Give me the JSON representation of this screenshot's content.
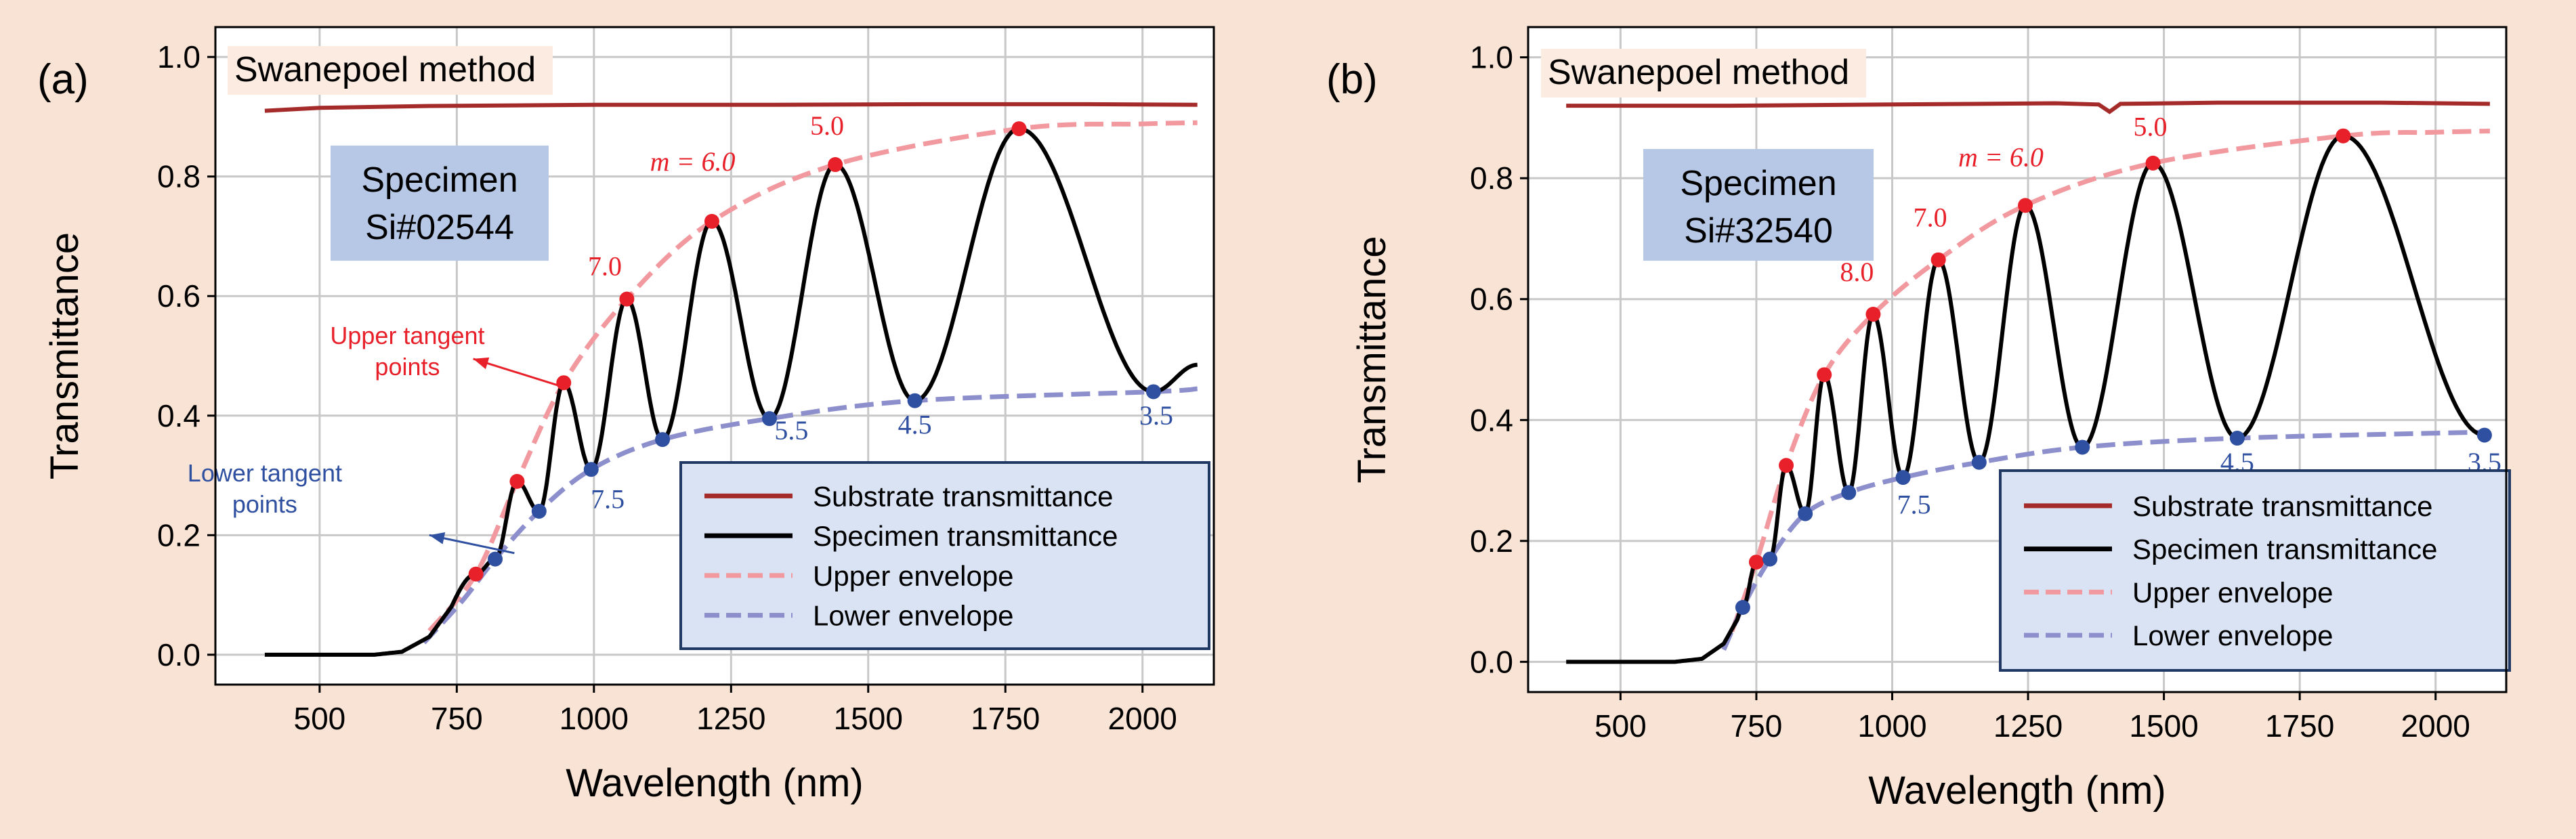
{
  "figure": {
    "panel_labels": [
      "(a)",
      "(b)"
    ],
    "colors": {
      "page_background": "#f8e3d4",
      "plot_background": "#ffffff",
      "grid": "#c8c8c8",
      "substrate": "#a52a2a",
      "specimen": "#000000",
      "upper_envelope": "#f2999f",
      "lower_envelope": "#8c8fcc",
      "upper_points": "#e8202a",
      "lower_points": "#2f4fa0",
      "upper_text": "#e8202a",
      "lower_text": "#2f4fa0",
      "specimen_box": "#b6c8e6",
      "legend_fill": "#dae3f3",
      "legend_border": "#1f3864"
    }
  },
  "chart_data": [
    {
      "type": "line",
      "panel": "(a)",
      "title": "",
      "xlabel": "Wavelength (nm)",
      "ylabel": "Transmittance",
      "xlim": [
        310,
        2130
      ],
      "ylim": [
        -0.05,
        1.05
      ],
      "xticks": [
        500,
        750,
        1000,
        1250,
        1500,
        1750,
        2000
      ],
      "yticks": [
        0.0,
        0.2,
        0.4,
        0.6,
        0.8,
        1.0
      ],
      "xtick_labels": [
        "500",
        "750",
        "1000",
        "1250",
        "1500",
        "1750",
        "2000"
      ],
      "ytick_labels": [
        "0.0",
        "0.2",
        "0.4",
        "0.6",
        "0.8",
        "1.0"
      ],
      "grid": true,
      "method_label": "Swanepoel method",
      "specimen_label": [
        "Specimen",
        "Si#02544"
      ],
      "legend": {
        "position": "lower-right",
        "entries": [
          "Substrate transmittance",
          "Specimen transmittance",
          "Upper envelope",
          "Lower envelope"
        ]
      },
      "substrate": {
        "x": [
          400,
          500,
          700,
          1000,
          1300,
          1600,
          1900,
          2100
        ],
        "y": [
          0.91,
          0.915,
          0.918,
          0.92,
          0.92,
          0.921,
          0.921,
          0.92
        ]
      },
      "specimen": {
        "onset_x": [
          400,
          600,
          650,
          700,
          740
        ],
        "onset_y": [
          0.0,
          0.0,
          0.005,
          0.03,
          0.08
        ],
        "max_x": [
          785,
          860,
          945,
          1060,
          1215,
          1440,
          1775
        ],
        "max_y": [
          0.135,
          0.29,
          0.455,
          0.595,
          0.725,
          0.82,
          0.88
        ],
        "min_x": [
          820,
          900,
          995,
          1125,
          1320,
          1585,
          2020
        ],
        "min_y": [
          0.16,
          0.24,
          0.31,
          0.36,
          0.395,
          0.425,
          0.44
        ],
        "end": [
          2100,
          0.485
        ]
      },
      "upper_envelope": {
        "x": [
          700,
          785,
          860,
          945,
          1060,
          1215,
          1440,
          1775,
          2000,
          2100
        ],
        "y": [
          0.04,
          0.135,
          0.29,
          0.455,
          0.595,
          0.725,
          0.82,
          0.88,
          0.888,
          0.89
        ]
      },
      "lower_envelope": {
        "x": [
          690,
          760,
          820,
          900,
          995,
          1125,
          1320,
          1585,
          2020,
          2100
        ],
        "y": [
          0.02,
          0.09,
          0.16,
          0.24,
          0.31,
          0.36,
          0.395,
          0.425,
          0.44,
          0.445
        ]
      },
      "upper_points": {
        "x": [
          785,
          860,
          945,
          1060,
          1215,
          1440,
          1775
        ],
        "y": [
          0.135,
          0.29,
          0.455,
          0.595,
          0.725,
          0.82,
          0.88
        ]
      },
      "lower_points": {
        "x": [
          820,
          900,
          995,
          1125,
          1320,
          1585,
          2020
        ],
        "y": [
          0.16,
          0.24,
          0.31,
          0.36,
          0.395,
          0.425,
          0.44
        ]
      },
      "order_labels": [
        {
          "text": "m = 6.0",
          "x": 1180,
          "y": 0.81,
          "color": "upper"
        },
        {
          "text": "7.0",
          "x": 1020,
          "y": 0.635,
          "color": "upper"
        },
        {
          "text": "5.0",
          "x": 1425,
          "y": 0.87,
          "color": "upper"
        },
        {
          "text": "7.5",
          "x": 1025,
          "y": 0.245,
          "color": "lower"
        },
        {
          "text": "5.5",
          "x": 1360,
          "y": 0.36,
          "color": "lower"
        },
        {
          "text": "4.5",
          "x": 1585,
          "y": 0.37,
          "color": "lower"
        },
        {
          "text": "3.5",
          "x": 2025,
          "y": 0.385,
          "color": "lower"
        }
      ],
      "annotations": [
        {
          "lines": [
            "Upper tangent",
            "points"
          ],
          "x": 660,
          "y": 0.52,
          "color": "upper",
          "arrow_to": [
            780,
            0.495
          ],
          "arrow_from": [
            937,
            0.45
          ]
        },
        {
          "lines": [
            "Lower tangent",
            "points"
          ],
          "x": 400,
          "y": 0.29,
          "color": "lower",
          "arrow_to": [
            700,
            0.2
          ],
          "arrow_from": [
            855,
            0.17
          ]
        }
      ]
    },
    {
      "type": "line",
      "panel": "(b)",
      "title": "",
      "xlabel": "Wavelength (nm)",
      "ylabel": "Transmittance",
      "xlim": [
        330,
        2130
      ],
      "ylim": [
        -0.05,
        1.05
      ],
      "xticks": [
        500,
        750,
        1000,
        1250,
        1500,
        1750,
        2000
      ],
      "yticks": [
        0.0,
        0.2,
        0.4,
        0.6,
        0.8,
        1.0
      ],
      "xtick_labels": [
        "500",
        "750",
        "1000",
        "1250",
        "1500",
        "1750",
        "2000"
      ],
      "ytick_labels": [
        "0.0",
        "0.2",
        "0.4",
        "0.6",
        "0.8",
        "1.0"
      ],
      "grid": true,
      "method_label": "Swanepoel method",
      "specimen_label": [
        "Specimen",
        "Si#32540"
      ],
      "legend": {
        "position": "lower-right",
        "entries": [
          "Substrate transmittance",
          "Specimen transmittance",
          "Upper envelope",
          "Lower envelope"
        ]
      },
      "substrate": {
        "x": [
          400,
          700,
          1000,
          1300,
          1380,
          1400,
          1420,
          1600,
          1900,
          2100
        ],
        "y": [
          0.92,
          0.92,
          0.922,
          0.924,
          0.922,
          0.91,
          0.923,
          0.925,
          0.925,
          0.923
        ]
      },
      "specimen": {
        "onset_x": [
          400,
          600,
          650,
          690,
          715
        ],
        "onset_y": [
          0.0,
          0.0,
          0.005,
          0.03,
          0.07
        ],
        "max_x": [
          750,
          805,
          875,
          965,
          1085,
          1245,
          1480,
          1830
        ],
        "max_y": [
          0.165,
          0.325,
          0.475,
          0.575,
          0.665,
          0.755,
          0.825,
          0.87
        ],
        "min_x": [
          725,
          775,
          840,
          920,
          1020,
          1160,
          1350,
          1635,
          2090
        ],
        "min_y": [
          0.09,
          0.17,
          0.245,
          0.28,
          0.305,
          0.33,
          0.355,
          0.37,
          0.375
        ],
        "end": [
          2090,
          0.375
        ]
      },
      "upper_envelope": {
        "x": [
          705,
          750,
          805,
          875,
          965,
          1085,
          1245,
          1480,
          1830,
          2000,
          2100
        ],
        "y": [
          0.05,
          0.165,
          0.325,
          0.475,
          0.575,
          0.665,
          0.755,
          0.825,
          0.87,
          0.876,
          0.878
        ]
      },
      "lower_envelope": {
        "x": [
          690,
          725,
          775,
          840,
          920,
          1020,
          1160,
          1350,
          1635,
          2090
        ],
        "y": [
          0.02,
          0.09,
          0.17,
          0.245,
          0.28,
          0.305,
          0.33,
          0.355,
          0.37,
          0.38
        ]
      },
      "upper_points": {
        "x": [
          750,
          805,
          875,
          965,
          1085,
          1245,
          1480,
          1830
        ],
        "y": [
          0.165,
          0.325,
          0.475,
          0.575,
          0.665,
          0.755,
          0.825,
          0.87
        ]
      },
      "lower_points": {
        "x": [
          725,
          775,
          840,
          920,
          1020,
          1160,
          1350,
          1635,
          2090
        ],
        "y": [
          0.09,
          0.17,
          0.245,
          0.28,
          0.305,
          0.33,
          0.355,
          0.37,
          0.375
        ]
      },
      "order_labels": [
        {
          "text": "m = 6.0",
          "x": 1200,
          "y": 0.82,
          "color": "upper"
        },
        {
          "text": "7.0",
          "x": 1070,
          "y": 0.72,
          "color": "upper"
        },
        {
          "text": "8.0",
          "x": 935,
          "y": 0.63,
          "color": "upper"
        },
        {
          "text": "5.0",
          "x": 1475,
          "y": 0.87,
          "color": "upper"
        },
        {
          "text": "7.5",
          "x": 1040,
          "y": 0.245,
          "color": "lower"
        },
        {
          "text": "4.5",
          "x": 1635,
          "y": 0.315,
          "color": "lower"
        },
        {
          "text": "3.5",
          "x": 2090,
          "y": 0.315,
          "color": "lower"
        }
      ],
      "annotations": []
    }
  ]
}
